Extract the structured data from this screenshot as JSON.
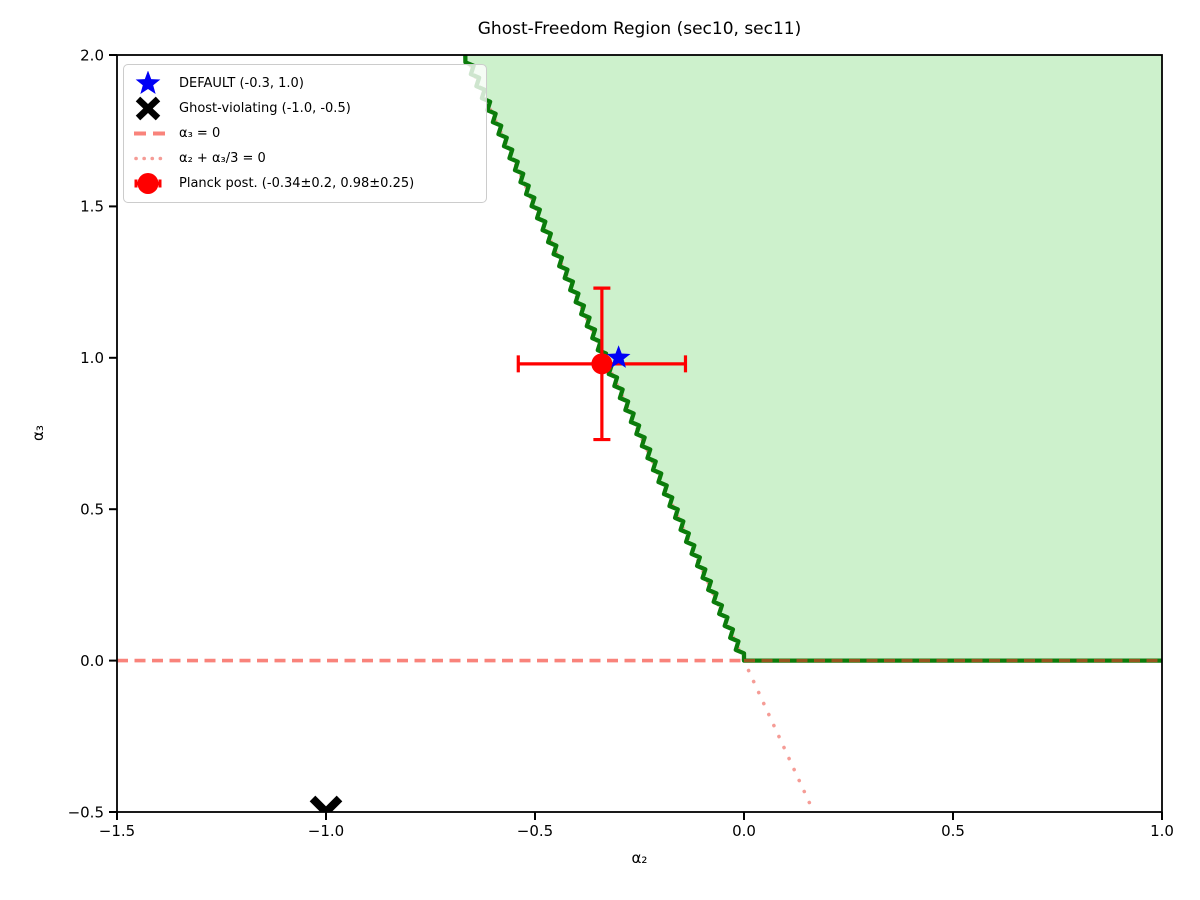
{
  "title": "Ghost-Freedom Region (sec10, sec11)",
  "axes": {
    "xlabel": "α₂",
    "ylabel": "α₃",
    "xlim": [
      -1.5,
      1.0
    ],
    "ylim": [
      -0.5,
      2.0
    ],
    "x_tick_values": [
      -1.5,
      -1.0,
      -0.5,
      0.0,
      0.5,
      1.0
    ],
    "x_tick_labels": [
      "−1.5",
      "−1.0",
      "−0.5",
      "0.0",
      "0.5",
      "1.0"
    ],
    "y_tick_values": [
      -0.5,
      0.0,
      0.5,
      1.0,
      1.5,
      2.0
    ],
    "y_tick_labels": [
      "−0.5",
      "0.0",
      "0.5",
      "1.0",
      "1.5",
      "2.0"
    ]
  },
  "legend": {
    "items": [
      {
        "label": "DEFAULT (-0.3, 1.0)",
        "marker": "star"
      },
      {
        "label": "Ghost-violating (-1.0, -0.5)",
        "marker": "x"
      },
      {
        "label": "α₃ = 0",
        "marker": "dashed"
      },
      {
        "label": "α₂ + α₃/3 = 0",
        "marker": "dotted"
      },
      {
        "label": "Planck post. (-0.34±0.2, 0.98±0.25)",
        "marker": "errorbar"
      }
    ]
  },
  "chart_data": {
    "type": "scatter",
    "title": "Ghost-Freedom Region (sec10, sec11)",
    "xlabel": "α₂",
    "ylabel": "α₃",
    "xlim": [
      -1.5,
      1.0
    ],
    "ylim": [
      -0.5,
      2.0
    ],
    "grid": false,
    "legend_position": "upper left",
    "region": {
      "name": "ghost-freedom-region",
      "description": "shaded allowed region where α₃ ≥ 0 and α₂ + α₃/3 ≥ 0",
      "vertices": [
        [
          -0.6667,
          2.0
        ],
        [
          0.0,
          0.0
        ],
        [
          1.0,
          0.0
        ],
        [
          1.0,
          2.0
        ]
      ],
      "boundary_diagonal": {
        "from": [
          -0.6667,
          2.0
        ],
        "to": [
          0.0,
          0.0
        ]
      },
      "boundary_horizontal": {
        "from": [
          0.0,
          0.0
        ],
        "to": [
          1.0,
          0.0
        ]
      }
    },
    "lines": [
      {
        "name": "alpha3-equals-zero",
        "style": "dashed",
        "y": 0.0,
        "x_from": -1.5,
        "x_to": 1.0
      },
      {
        "name": "alpha2-plus-alpha3-third-equals-zero",
        "style": "dotted",
        "from": [
          -0.6667,
          2.0
        ],
        "to": [
          0.1667,
          -0.5
        ]
      }
    ],
    "points": [
      {
        "name": "DEFAULT",
        "x": -0.3,
        "y": 1.0,
        "marker": "star"
      },
      {
        "name": "Ghost-violating",
        "x": -1.0,
        "y": -0.5,
        "marker": "x"
      },
      {
        "name": "Planck posterior",
        "x": -0.34,
        "y": 0.98,
        "xerr": 0.2,
        "yerr": 0.25,
        "marker": "circle"
      }
    ]
  },
  "colors": {
    "blue": "#0000f5",
    "black": "#000000",
    "red": "#ff0000",
    "salmon": "#f9837b",
    "salmon_light": "#f59c96",
    "dash_over_green": "#96551e",
    "region_fill": "#cdf1cc",
    "green_line": "#0b7c0b",
    "legend_border": "#cccccc"
  }
}
